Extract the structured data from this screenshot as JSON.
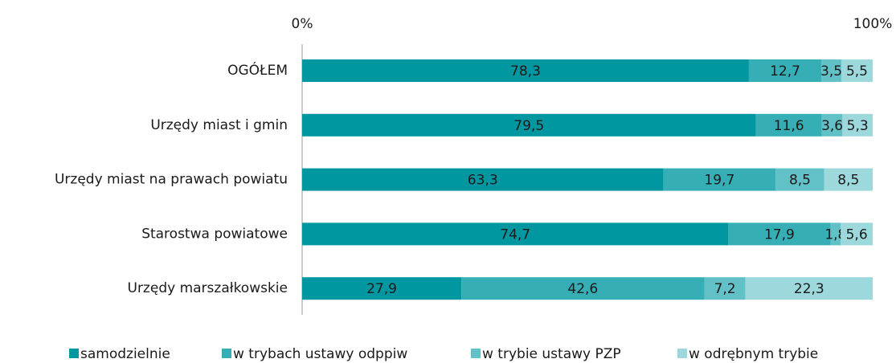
{
  "chart_data": {
    "type": "stacked-bar-horizontal",
    "categories": [
      "OGÓŁEM",
      "Urzędy miast i gmin",
      "Urzędy miast na prawach powiatu",
      "Starostwa powiatowe",
      "Urzędy marszałkowskie"
    ],
    "series": [
      {
        "name": "samodzielnie",
        "color": "#0097a0",
        "values": [
          78.3,
          79.5,
          63.3,
          74.7,
          27.9
        ],
        "value_labels": [
          "78,3",
          "79,5",
          "63,3",
          "74,7",
          "27,9"
        ]
      },
      {
        "name": "w trybach ustawy odppiw",
        "color": "#35aeb5",
        "values": [
          12.7,
          11.6,
          19.7,
          17.9,
          42.6
        ],
        "value_labels": [
          "12,7",
          "11,6",
          "19,7",
          "17,9",
          "42,6"
        ]
      },
      {
        "name": "w trybie ustawy PZP",
        "color": "#62c1c7",
        "values": [
          3.5,
          3.6,
          8.5,
          1.8,
          7.2
        ],
        "value_labels": [
          "3,5",
          "3,6",
          "8,5",
          "1,8",
          "7,2"
        ]
      },
      {
        "name": "w odrębnym trybie",
        "color": "#9dd8dc",
        "values": [
          5.5,
          5.3,
          8.5,
          5.6,
          22.3
        ],
        "value_labels": [
          "5,5",
          "5,3",
          "8,5",
          "5,6",
          "22,3"
        ]
      }
    ],
    "xlim": [
      0,
      100
    ],
    "xticks": [
      {
        "value": 0,
        "label": "0%"
      },
      {
        "value": 100,
        "label": "100%"
      }
    ],
    "legend": "bottom"
  }
}
